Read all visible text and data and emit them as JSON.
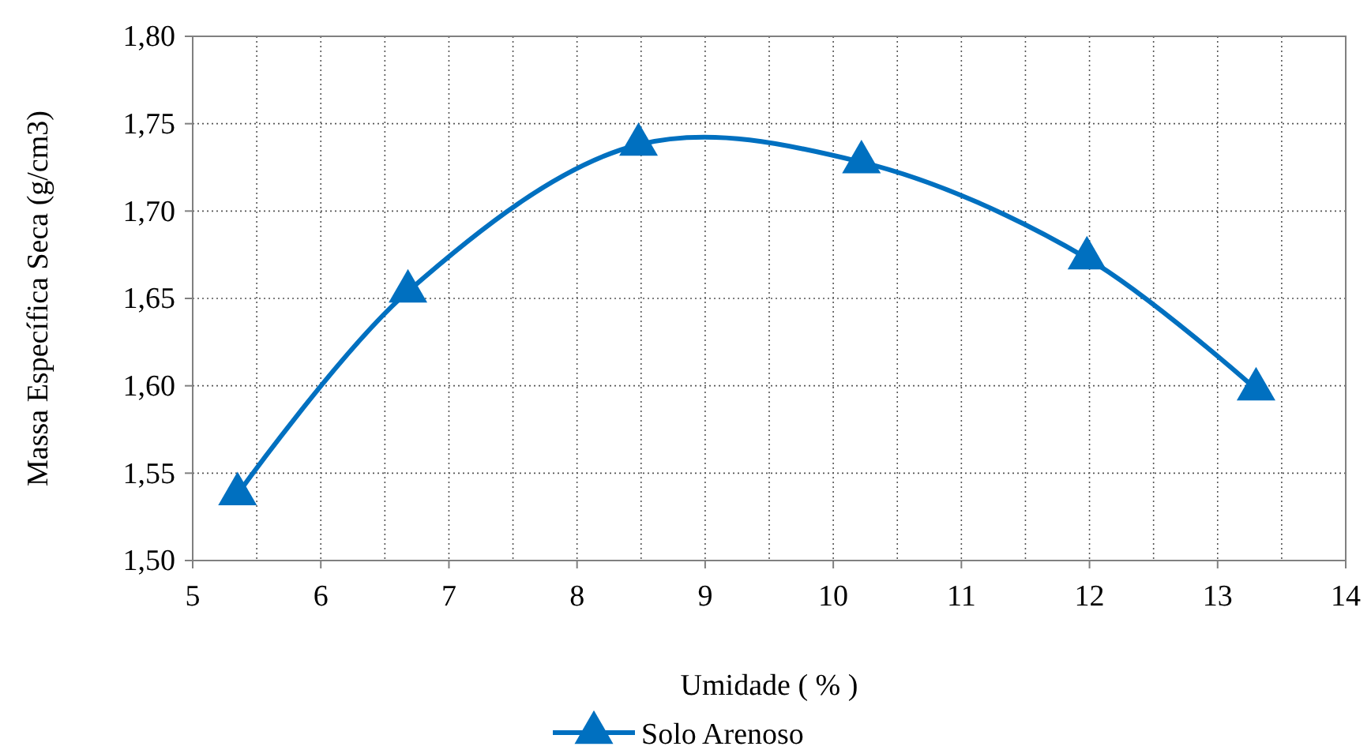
{
  "chart_data": {
    "type": "line",
    "xlabel": "Umidade ( % )",
    "ylabel": "Massa Específica Seca (g/cm3)",
    "x": [
      5.35,
      6.68,
      8.48,
      10.22,
      11.98,
      13.3
    ],
    "series": [
      {
        "name": "Solo Arenoso",
        "color": "#0070c0",
        "values": [
          1.538,
          1.654,
          1.738,
          1.728,
          1.673,
          1.598
        ]
      }
    ],
    "xlim": [
      5,
      14
    ],
    "xticks": [
      5,
      6,
      7,
      8,
      9,
      10,
      11,
      12,
      13,
      14
    ],
    "ylim": [
      1.5,
      1.8
    ],
    "yticks": [
      {
        "value": 1.5,
        "label": "1,50"
      },
      {
        "value": 1.55,
        "label": "1,55"
      },
      {
        "value": 1.6,
        "label": "1,60"
      },
      {
        "value": 1.65,
        "label": "1,65"
      },
      {
        "value": 1.7,
        "label": "1,70"
      },
      {
        "value": 1.75,
        "label": "1,75"
      },
      {
        "value": 1.8,
        "label": "1,80"
      }
    ],
    "grid": true,
    "legend": "bottom",
    "marker": "triangle",
    "line_style": "solid"
  }
}
